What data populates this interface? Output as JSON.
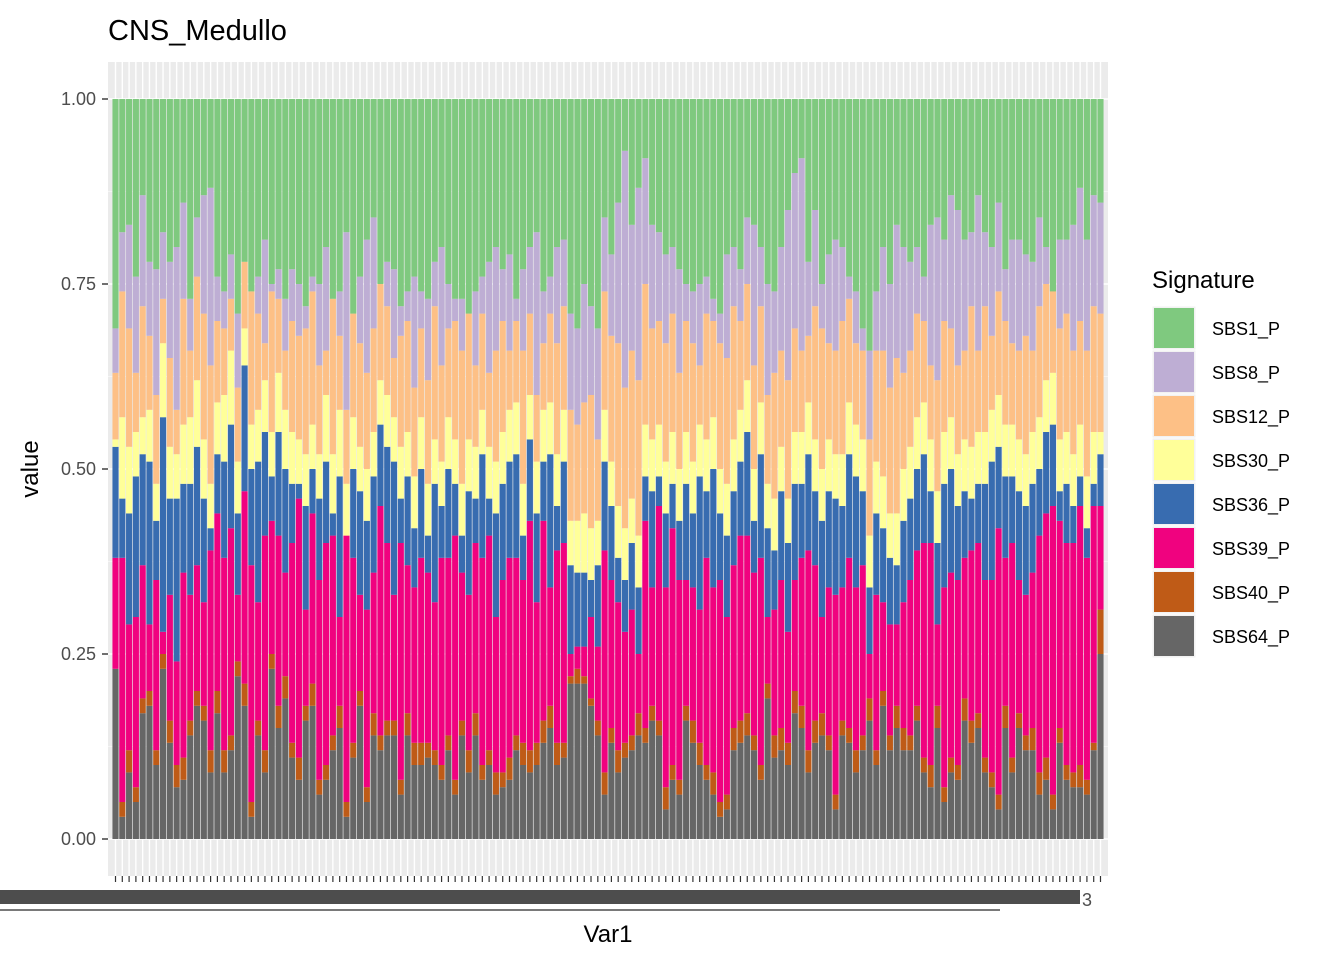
{
  "chart_data": {
    "type": "bar",
    "stacked": true,
    "title": "CNS_Medullo",
    "xlabel": "Var1",
    "ylabel": "value",
    "ylim": [
      0,
      1
    ],
    "yticks": [
      0,
      0.25,
      0.5,
      0.75,
      1.0
    ],
    "ytick_labels": [
      "0.00",
      "0.25",
      "0.50",
      "0.75",
      "1.00"
    ],
    "visible_category_fragment": "3",
    "num_categories": 146,
    "legend": {
      "title": "Signature",
      "position": "right"
    },
    "signatures": [
      {
        "name": "SBS1_P",
        "color": "#7fc97f"
      },
      {
        "name": "SBS8_P",
        "color": "#beaed4"
      },
      {
        "name": "SBS12_P",
        "color": "#fdc086"
      },
      {
        "name": "SBS30_P",
        "color": "#ffff99"
      },
      {
        "name": "SBS36_P",
        "color": "#386cb0"
      },
      {
        "name": "SBS39_P",
        "color": "#f0027f"
      },
      {
        "name": "SBS40_P",
        "color": "#bf5b17"
      },
      {
        "name": "SBS64_P",
        "color": "#666666"
      }
    ],
    "cumulative_series": [
      {
        "name": "SBS64_P",
        "values": [
          0.23,
          0.03,
          0.09,
          0.05,
          0.17,
          0.18,
          0.1,
          0.23,
          0.13,
          0.07,
          0.08,
          0.14,
          0.18,
          0.16,
          0.09,
          0.17,
          0.09,
          0.12,
          0.22,
          0.18,
          0.03,
          0.14,
          0.09,
          0.23,
          0.15,
          0.19,
          0.11,
          0.08,
          0.16,
          0.18,
          0.06,
          0.08,
          0.12,
          0.15,
          0.03,
          0.11,
          0.18,
          0.05,
          0.14,
          0.12,
          0.14,
          0.14,
          0.06,
          0.14,
          0.1,
          0.1,
          0.11,
          0.1,
          0.08,
          0.12,
          0.06,
          0.14,
          0.09,
          0.14,
          0.08,
          0.1,
          0.06,
          0.07,
          0.08,
          0.12,
          0.1,
          0.09,
          0.1,
          0.13,
          0.15,
          0.1,
          0.11,
          0.21,
          0.21,
          0.21,
          0.18,
          0.14,
          0.06,
          0.13,
          0.09,
          0.11,
          0.12,
          0.14,
          0.13,
          0.16,
          0.14,
          0.04,
          0.08,
          0.06,
          0.16,
          0.13,
          0.1,
          0.08,
          0.06,
          0.03,
          0.04,
          0.12,
          0.13,
          0.14,
          0.12,
          0.08,
          0.19,
          0.11,
          0.12,
          0.1,
          0.17,
          0.15,
          0.09,
          0.13,
          0.14,
          0.12,
          0.04,
          0.14,
          0.13,
          0.09,
          0.12,
          0.16,
          0.1,
          0.18,
          0.12,
          0.15,
          0.12,
          0.12,
          0.16,
          0.09,
          0.07,
          0.15,
          0.05,
          0.09,
          0.08,
          0.16,
          0.13,
          0.15,
          0.09,
          0.07,
          0.04,
          0.15,
          0.09,
          0.15,
          0.12,
          0.12,
          0.06,
          0.08,
          0.04,
          0.13,
          0.08,
          0.07,
          0.07,
          0.06,
          0.12,
          0.25
        ]
      },
      {
        "name": "SBS40_P",
        "values": [
          0.23,
          0.05,
          0.12,
          0.07,
          0.19,
          0.2,
          0.12,
          0.25,
          0.16,
          0.1,
          0.11,
          0.16,
          0.2,
          0.18,
          0.12,
          0.2,
          0.12,
          0.14,
          0.24,
          0.21,
          0.05,
          0.16,
          0.12,
          0.25,
          0.18,
          0.22,
          0.13,
          0.11,
          0.18,
          0.21,
          0.08,
          0.1,
          0.14,
          0.18,
          0.05,
          0.13,
          0.2,
          0.07,
          0.17,
          0.14,
          0.16,
          0.16,
          0.08,
          0.17,
          0.13,
          0.13,
          0.13,
          0.12,
          0.1,
          0.14,
          0.08,
          0.16,
          0.12,
          0.17,
          0.1,
          0.12,
          0.09,
          0.09,
          0.11,
          0.14,
          0.13,
          0.12,
          0.13,
          0.16,
          0.18,
          0.13,
          0.13,
          0.22,
          0.23,
          0.22,
          0.19,
          0.16,
          0.09,
          0.15,
          0.12,
          0.13,
          0.14,
          0.17,
          0.15,
          0.18,
          0.16,
          0.07,
          0.1,
          0.08,
          0.18,
          0.16,
          0.13,
          0.1,
          0.09,
          0.05,
          0.06,
          0.15,
          0.16,
          0.17,
          0.14,
          0.1,
          0.21,
          0.14,
          0.15,
          0.13,
          0.2,
          0.18,
          0.12,
          0.16,
          0.17,
          0.14,
          0.06,
          0.16,
          0.15,
          0.12,
          0.14,
          0.19,
          0.12,
          0.2,
          0.14,
          0.18,
          0.15,
          0.14,
          0.18,
          0.11,
          0.1,
          0.18,
          0.07,
          0.11,
          0.1,
          0.19,
          0.16,
          0.17,
          0.11,
          0.09,
          0.06,
          0.18,
          0.11,
          0.17,
          0.14,
          0.15,
          0.09,
          0.11,
          0.06,
          0.15,
          0.1,
          0.09,
          0.1,
          0.08,
          0.13,
          0.31
        ]
      },
      {
        "name": "SBS39_P",
        "values": [
          0.38,
          0.38,
          0.29,
          0.3,
          0.37,
          0.29,
          0.35,
          0.28,
          0.33,
          0.24,
          0.36,
          0.33,
          0.37,
          0.32,
          0.39,
          0.44,
          0.38,
          0.42,
          0.33,
          0.47,
          0.37,
          0.32,
          0.41,
          0.43,
          0.41,
          0.36,
          0.4,
          0.46,
          0.31,
          0.44,
          0.35,
          0.4,
          0.41,
          0.3,
          0.41,
          0.38,
          0.33,
          0.31,
          0.36,
          0.45,
          0.4,
          0.33,
          0.4,
          0.37,
          0.34,
          0.38,
          0.36,
          0.32,
          0.38,
          0.38,
          0.41,
          0.36,
          0.33,
          0.4,
          0.38,
          0.41,
          0.3,
          0.35,
          0.38,
          0.38,
          0.35,
          0.43,
          0.32,
          0.43,
          0.34,
          0.39,
          0.4,
          0.25,
          0.26,
          0.26,
          0.3,
          0.26,
          0.39,
          0.35,
          0.32,
          0.28,
          0.31,
          0.25,
          0.43,
          0.34,
          0.45,
          0.34,
          0.42,
          0.35,
          0.35,
          0.34,
          0.31,
          0.38,
          0.34,
          0.35,
          0.3,
          0.37,
          0.41,
          0.41,
          0.36,
          0.38,
          0.3,
          0.31,
          0.35,
          0.28,
          0.35,
          0.38,
          0.39,
          0.37,
          0.3,
          0.34,
          0.33,
          0.34,
          0.38,
          0.34,
          0.37,
          0.25,
          0.33,
          0.32,
          0.29,
          0.29,
          0.32,
          0.35,
          0.39,
          0.4,
          0.4,
          0.29,
          0.34,
          0.36,
          0.35,
          0.38,
          0.39,
          0.4,
          0.35,
          0.35,
          0.42,
          0.38,
          0.4,
          0.35,
          0.33,
          0.36,
          0.41,
          0.44,
          0.45,
          0.43,
          0.4,
          0.4,
          0.45,
          0.38,
          0.45,
          0.45
        ]
      },
      {
        "name": "SBS36_P",
        "values": [
          0.53,
          0.46,
          0.44,
          0.49,
          0.52,
          0.51,
          0.43,
          0.57,
          0.46,
          0.46,
          0.48,
          0.48,
          0.53,
          0.46,
          0.42,
          0.52,
          0.51,
          0.56,
          0.44,
          0.64,
          0.5,
          0.51,
          0.55,
          0.49,
          0.55,
          0.5,
          0.48,
          0.48,
          0.45,
          0.5,
          0.46,
          0.51,
          0.44,
          0.49,
          0.41,
          0.5,
          0.47,
          0.43,
          0.49,
          0.56,
          0.53,
          0.51,
          0.46,
          0.49,
          0.42,
          0.5,
          0.41,
          0.48,
          0.45,
          0.5,
          0.48,
          0.41,
          0.47,
          0.46,
          0.52,
          0.46,
          0.44,
          0.48,
          0.51,
          0.52,
          0.41,
          0.54,
          0.44,
          0.51,
          0.52,
          0.45,
          0.51,
          0.37,
          0.36,
          0.36,
          0.35,
          0.37,
          0.51,
          0.45,
          0.38,
          0.35,
          0.4,
          0.34,
          0.49,
          0.47,
          0.49,
          0.44,
          0.48,
          0.43,
          0.48,
          0.44,
          0.49,
          0.47,
          0.5,
          0.44,
          0.41,
          0.47,
          0.51,
          0.55,
          0.43,
          0.52,
          0.42,
          0.39,
          0.47,
          0.4,
          0.48,
          0.48,
          0.52,
          0.47,
          0.43,
          0.47,
          0.46,
          0.45,
          0.52,
          0.49,
          0.47,
          0.34,
          0.44,
          0.42,
          0.38,
          0.37,
          0.43,
          0.46,
          0.5,
          0.52,
          0.47,
          0.4,
          0.48,
          0.5,
          0.45,
          0.47,
          0.46,
          0.48,
          0.48,
          0.51,
          0.53,
          0.49,
          0.49,
          0.47,
          0.45,
          0.48,
          0.5,
          0.55,
          0.56,
          0.47,
          0.48,
          0.45,
          0.49,
          0.42,
          0.48,
          0.52
        ]
      },
      {
        "name": "SBS30_P",
        "values": [
          0.54,
          0.57,
          0.53,
          0.55,
          0.57,
          0.58,
          0.48,
          0.67,
          0.53,
          0.52,
          0.56,
          0.57,
          0.62,
          0.54,
          0.48,
          0.59,
          0.6,
          0.66,
          0.51,
          0.69,
          0.56,
          0.58,
          0.62,
          0.55,
          0.63,
          0.58,
          0.55,
          0.54,
          0.52,
          0.56,
          0.52,
          0.6,
          0.52,
          0.58,
          0.48,
          0.57,
          0.53,
          0.5,
          0.55,
          0.62,
          0.6,
          0.57,
          0.53,
          0.55,
          0.49,
          0.57,
          0.48,
          0.54,
          0.51,
          0.57,
          0.54,
          0.48,
          0.54,
          0.53,
          0.58,
          0.53,
          0.51,
          0.55,
          0.58,
          0.59,
          0.48,
          0.6,
          0.51,
          0.58,
          0.59,
          0.52,
          0.58,
          0.43,
          0.43,
          0.44,
          0.42,
          0.43,
          0.58,
          0.51,
          0.45,
          0.42,
          0.46,
          0.41,
          0.56,
          0.54,
          0.56,
          0.51,
          0.55,
          0.5,
          0.55,
          0.51,
          0.56,
          0.54,
          0.57,
          0.5,
          0.48,
          0.54,
          0.58,
          0.62,
          0.5,
          0.59,
          0.48,
          0.46,
          0.53,
          0.46,
          0.55,
          0.55,
          0.59,
          0.54,
          0.5,
          0.54,
          0.52,
          0.52,
          0.59,
          0.56,
          0.54,
          0.41,
          0.51,
          0.49,
          0.44,
          0.44,
          0.5,
          0.53,
          0.57,
          0.59,
          0.54,
          0.47,
          0.55,
          0.57,
          0.52,
          0.54,
          0.53,
          0.55,
          0.55,
          0.58,
          0.6,
          0.56,
          0.56,
          0.54,
          0.52,
          0.55,
          0.57,
          0.62,
          0.63,
          0.54,
          0.55,
          0.52,
          0.56,
          0.49,
          0.55,
          0.55
        ]
      },
      {
        "name": "SBS12_P",
        "values": [
          0.63,
          0.74,
          0.69,
          0.63,
          0.72,
          0.68,
          0.6,
          0.73,
          0.65,
          0.58,
          0.73,
          0.66,
          0.76,
          0.71,
          0.64,
          0.7,
          0.69,
          0.73,
          0.61,
          0.78,
          0.74,
          0.71,
          0.67,
          0.74,
          0.73,
          0.66,
          0.7,
          0.68,
          0.69,
          0.74,
          0.64,
          0.66,
          0.73,
          0.68,
          0.58,
          0.71,
          0.67,
          0.63,
          0.69,
          0.75,
          0.72,
          0.65,
          0.68,
          0.7,
          0.61,
          0.69,
          0.62,
          0.72,
          0.64,
          0.69,
          0.7,
          0.66,
          0.71,
          0.64,
          0.71,
          0.63,
          0.66,
          0.7,
          0.66,
          0.7,
          0.66,
          0.71,
          0.6,
          0.67,
          0.71,
          0.67,
          0.72,
          0.58,
          0.56,
          0.59,
          0.6,
          0.54,
          0.74,
          0.68,
          0.67,
          0.61,
          0.66,
          0.62,
          0.75,
          0.69,
          0.7,
          0.67,
          0.71,
          0.63,
          0.7,
          0.67,
          0.64,
          0.71,
          0.7,
          0.67,
          0.65,
          0.72,
          0.7,
          0.75,
          0.64,
          0.72,
          0.6,
          0.63,
          0.66,
          0.62,
          0.69,
          0.66,
          0.68,
          0.72,
          0.69,
          0.67,
          0.66,
          0.7,
          0.73,
          0.67,
          0.66,
          0.54,
          0.66,
          0.66,
          0.61,
          0.65,
          0.63,
          0.66,
          0.71,
          0.7,
          0.64,
          0.62,
          0.7,
          0.69,
          0.64,
          0.66,
          0.72,
          0.66,
          0.72,
          0.68,
          0.74,
          0.7,
          0.67,
          0.66,
          0.68,
          0.66,
          0.72,
          0.75,
          0.76,
          0.69,
          0.71,
          0.66,
          0.7,
          0.66,
          0.72,
          0.71
        ]
      },
      {
        "name": "SBS8_P",
        "values": [
          0.69,
          0.82,
          0.83,
          0.76,
          0.87,
          0.78,
          0.77,
          0.82,
          0.78,
          0.8,
          0.86,
          0.73,
          0.84,
          0.87,
          0.88,
          0.76,
          0.74,
          0.79,
          0.71,
          0.78,
          0.74,
          0.76,
          0.81,
          0.75,
          0.77,
          0.73,
          0.77,
          0.75,
          0.72,
          0.76,
          0.75,
          0.8,
          0.73,
          0.74,
          0.82,
          0.71,
          0.76,
          0.81,
          0.84,
          0.75,
          0.78,
          0.77,
          0.72,
          0.74,
          0.76,
          0.74,
          0.73,
          0.78,
          0.8,
          0.75,
          0.73,
          0.73,
          0.71,
          0.74,
          0.76,
          0.78,
          0.8,
          0.77,
          0.79,
          0.73,
          0.77,
          0.8,
          0.82,
          0.74,
          0.76,
          0.8,
          0.81,
          0.71,
          0.69,
          0.75,
          0.72,
          0.69,
          0.84,
          0.79,
          0.86,
          0.93,
          0.83,
          0.88,
          0.92,
          0.83,
          0.82,
          0.79,
          0.8,
          0.77,
          0.75,
          0.74,
          0.75,
          0.76,
          0.73,
          0.71,
          0.79,
          0.8,
          0.77,
          0.84,
          0.83,
          0.8,
          0.75,
          0.74,
          0.8,
          0.85,
          0.9,
          0.92,
          0.78,
          0.85,
          0.75,
          0.79,
          0.81,
          0.8,
          0.76,
          0.74,
          0.69,
          0.66,
          0.74,
          0.8,
          0.75,
          0.83,
          0.8,
          0.78,
          0.8,
          0.76,
          0.83,
          0.84,
          0.81,
          0.87,
          0.85,
          0.81,
          0.82,
          0.87,
          0.82,
          0.8,
          0.86,
          0.77,
          0.81,
          0.81,
          0.79,
          0.78,
          0.84,
          0.8,
          0.74,
          0.81,
          0.81,
          0.83,
          0.88,
          0.81,
          0.87,
          0.86
        ]
      },
      {
        "name": "SBS1_P",
        "values": [
          1,
          1,
          1,
          1,
          1,
          1,
          1,
          1,
          1,
          1,
          1,
          1,
          1,
          1,
          1,
          1,
          1,
          1,
          1,
          1,
          1,
          1,
          1,
          1,
          1,
          1,
          1,
          1,
          1,
          1,
          1,
          1,
          1,
          1,
          1,
          1,
          1,
          1,
          1,
          1,
          1,
          1,
          1,
          1,
          1,
          1,
          1,
          1,
          1,
          1,
          1,
          1,
          1,
          1,
          1,
          1,
          1,
          1,
          1,
          1,
          1,
          1,
          1,
          1,
          1,
          1,
          1,
          1,
          1,
          1,
          1,
          1,
          1,
          1,
          1,
          1,
          1,
          1,
          1,
          1,
          1,
          1,
          1,
          1,
          1,
          1,
          1,
          1,
          1,
          1,
          1,
          1,
          1,
          1,
          1,
          1,
          1,
          1,
          1,
          1,
          1,
          1,
          1,
          1,
          1,
          1,
          1,
          1,
          1,
          1,
          1,
          1,
          1,
          1,
          1,
          1,
          1,
          1,
          1,
          1,
          1,
          1,
          1,
          1,
          1,
          1,
          1,
          1,
          1,
          1,
          1,
          1,
          1,
          1,
          1,
          1,
          1,
          1,
          1,
          1,
          1,
          1,
          1,
          1,
          1,
          1
        ]
      }
    ]
  }
}
